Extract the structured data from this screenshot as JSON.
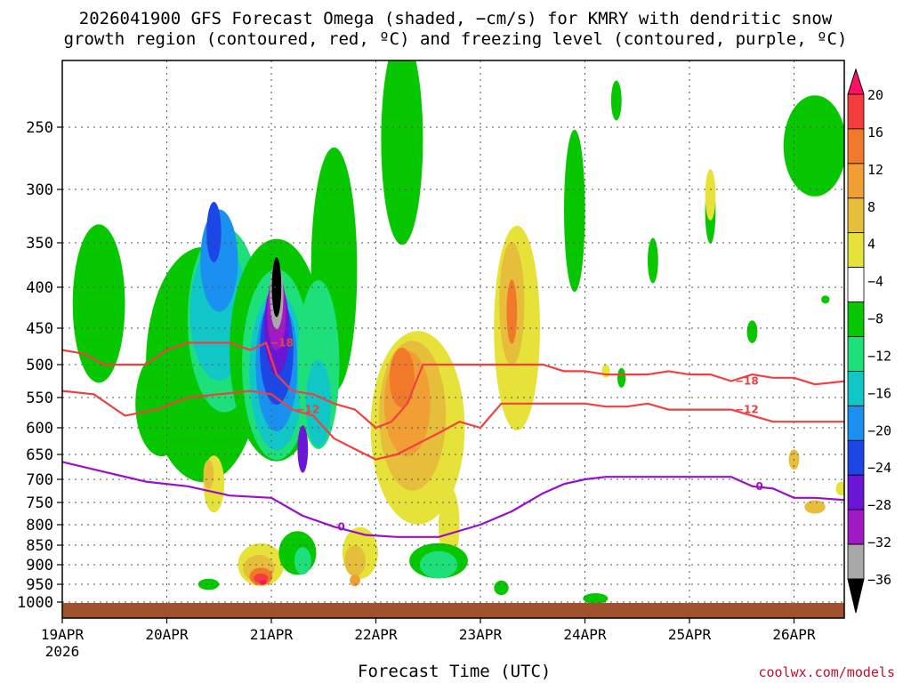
{
  "header": {
    "title_line1": "2026041900 GFS Forecast Omega (shaded, −cm/s) for KMRY with dendritic snow",
    "title_line2": "growth region (contoured, red, ºC) and freezing level (contoured, purple, ºC)"
  },
  "footer": {
    "credit": "coolwx.com/models"
  },
  "chart_data": {
    "type": "heatmap",
    "title": "2026041900 GFS Forecast Omega (shaded, −cm/s) for KMRY with dendritic snow growth region (contoured, red, ºC) and freezing level (contoured, purple, ºC)",
    "xlabel": "Forecast Time (UTC)",
    "ylabel": "",
    "x_ticks": [
      "19APR",
      "20APR",
      "21APR",
      "22APR",
      "23APR",
      "24APR",
      "25APR",
      "26APR"
    ],
    "x_tick_year": "2026",
    "y_ticks": [
      250,
      300,
      350,
      400,
      450,
      500,
      550,
      600,
      650,
      700,
      750,
      800,
      850,
      900,
      950,
      1000
    ],
    "y_range": [
      200,
      1020
    ],
    "x_range_days": [
      0,
      7.5
    ],
    "colorbar": {
      "labels": [
        "20",
        "16",
        "12",
        "8",
        "4",
        "−4",
        "−8",
        "−12",
        "−16",
        "−20",
        "−24",
        "−28",
        "−32",
        "−36"
      ],
      "colors": [
        "#ff1166",
        "#f43c3c",
        "#f07a2a",
        "#f19e35",
        "#e6be3c",
        "#e7e23a",
        "#ffffff",
        "#07c800",
        "#1ee07a",
        "#11c6c6",
        "#1a90f0",
        "#1d46e6",
        "#6b16d6",
        "#a11ac6",
        "#a8a8a8",
        "#000000"
      ]
    },
    "series": [
      {
        "name": "-18",
        "color": "#f04040",
        "label": "−18",
        "x": [
          0,
          0.2,
          0.4,
          0.6,
          0.8,
          1.0,
          1.2,
          1.4,
          1.6,
          1.8,
          1.95,
          2.05,
          2.2,
          2.4,
          2.6,
          2.8,
          3.0,
          3.15,
          3.3,
          3.45,
          3.6,
          3.8,
          4.0,
          4.2,
          4.4,
          4.6,
          4.8,
          5.0,
          5.2,
          5.4,
          5.6,
          5.8,
          6.0,
          6.2,
          6.4,
          6.6,
          6.8,
          7.0,
          7.2,
          7.5
        ],
        "y": [
          480,
          485,
          500,
          500,
          500,
          480,
          470,
          470,
          470,
          480,
          470,
          515,
          540,
          545,
          560,
          570,
          600,
          590,
          560,
          500,
          500,
          500,
          500,
          500,
          500,
          500,
          510,
          510,
          515,
          515,
          515,
          510,
          515,
          515,
          525,
          515,
          520,
          520,
          530,
          525
        ]
      },
      {
        "name": "-12",
        "color": "#f04040",
        "label": "−12",
        "x": [
          0,
          0.3,
          0.6,
          0.9,
          1.2,
          1.5,
          1.8,
          2.0,
          2.2,
          2.4,
          2.6,
          2.8,
          3.0,
          3.2,
          3.4,
          3.6,
          3.8,
          4.0,
          4.2,
          4.4,
          4.6,
          4.8,
          5.0,
          5.2,
          5.4,
          5.6,
          5.8,
          6.0,
          6.2,
          6.4,
          6.6,
          6.8,
          7.0,
          7.2,
          7.5
        ],
        "y": [
          540,
          545,
          580,
          570,
          550,
          545,
          540,
          545,
          570,
          580,
          620,
          640,
          660,
          650,
          630,
          610,
          590,
          600,
          560,
          560,
          560,
          560,
          560,
          565,
          565,
          560,
          570,
          570,
          570,
          570,
          580,
          590,
          590,
          590,
          590
        ]
      },
      {
        "name": "0",
        "color": "#9a0ec8",
        "label": "0",
        "x": [
          0,
          0.4,
          0.8,
          1.2,
          1.6,
          2.0,
          2.3,
          2.6,
          2.9,
          3.2,
          3.6,
          4.0,
          4.3,
          4.6,
          4.8,
          5.0,
          5.2,
          5.4,
          5.6,
          5.8,
          6.0,
          6.2,
          6.4,
          6.6,
          6.8,
          7.0,
          7.2,
          7.5
        ],
        "y": [
          665,
          685,
          705,
          715,
          735,
          740,
          780,
          805,
          825,
          830,
          830,
          800,
          770,
          730,
          710,
          700,
          695,
          695,
          695,
          695,
          695,
          695,
          695,
          715,
          720,
          740,
          740,
          745
        ]
      }
    ],
    "grid": true,
    "legend": "colorbar right"
  }
}
